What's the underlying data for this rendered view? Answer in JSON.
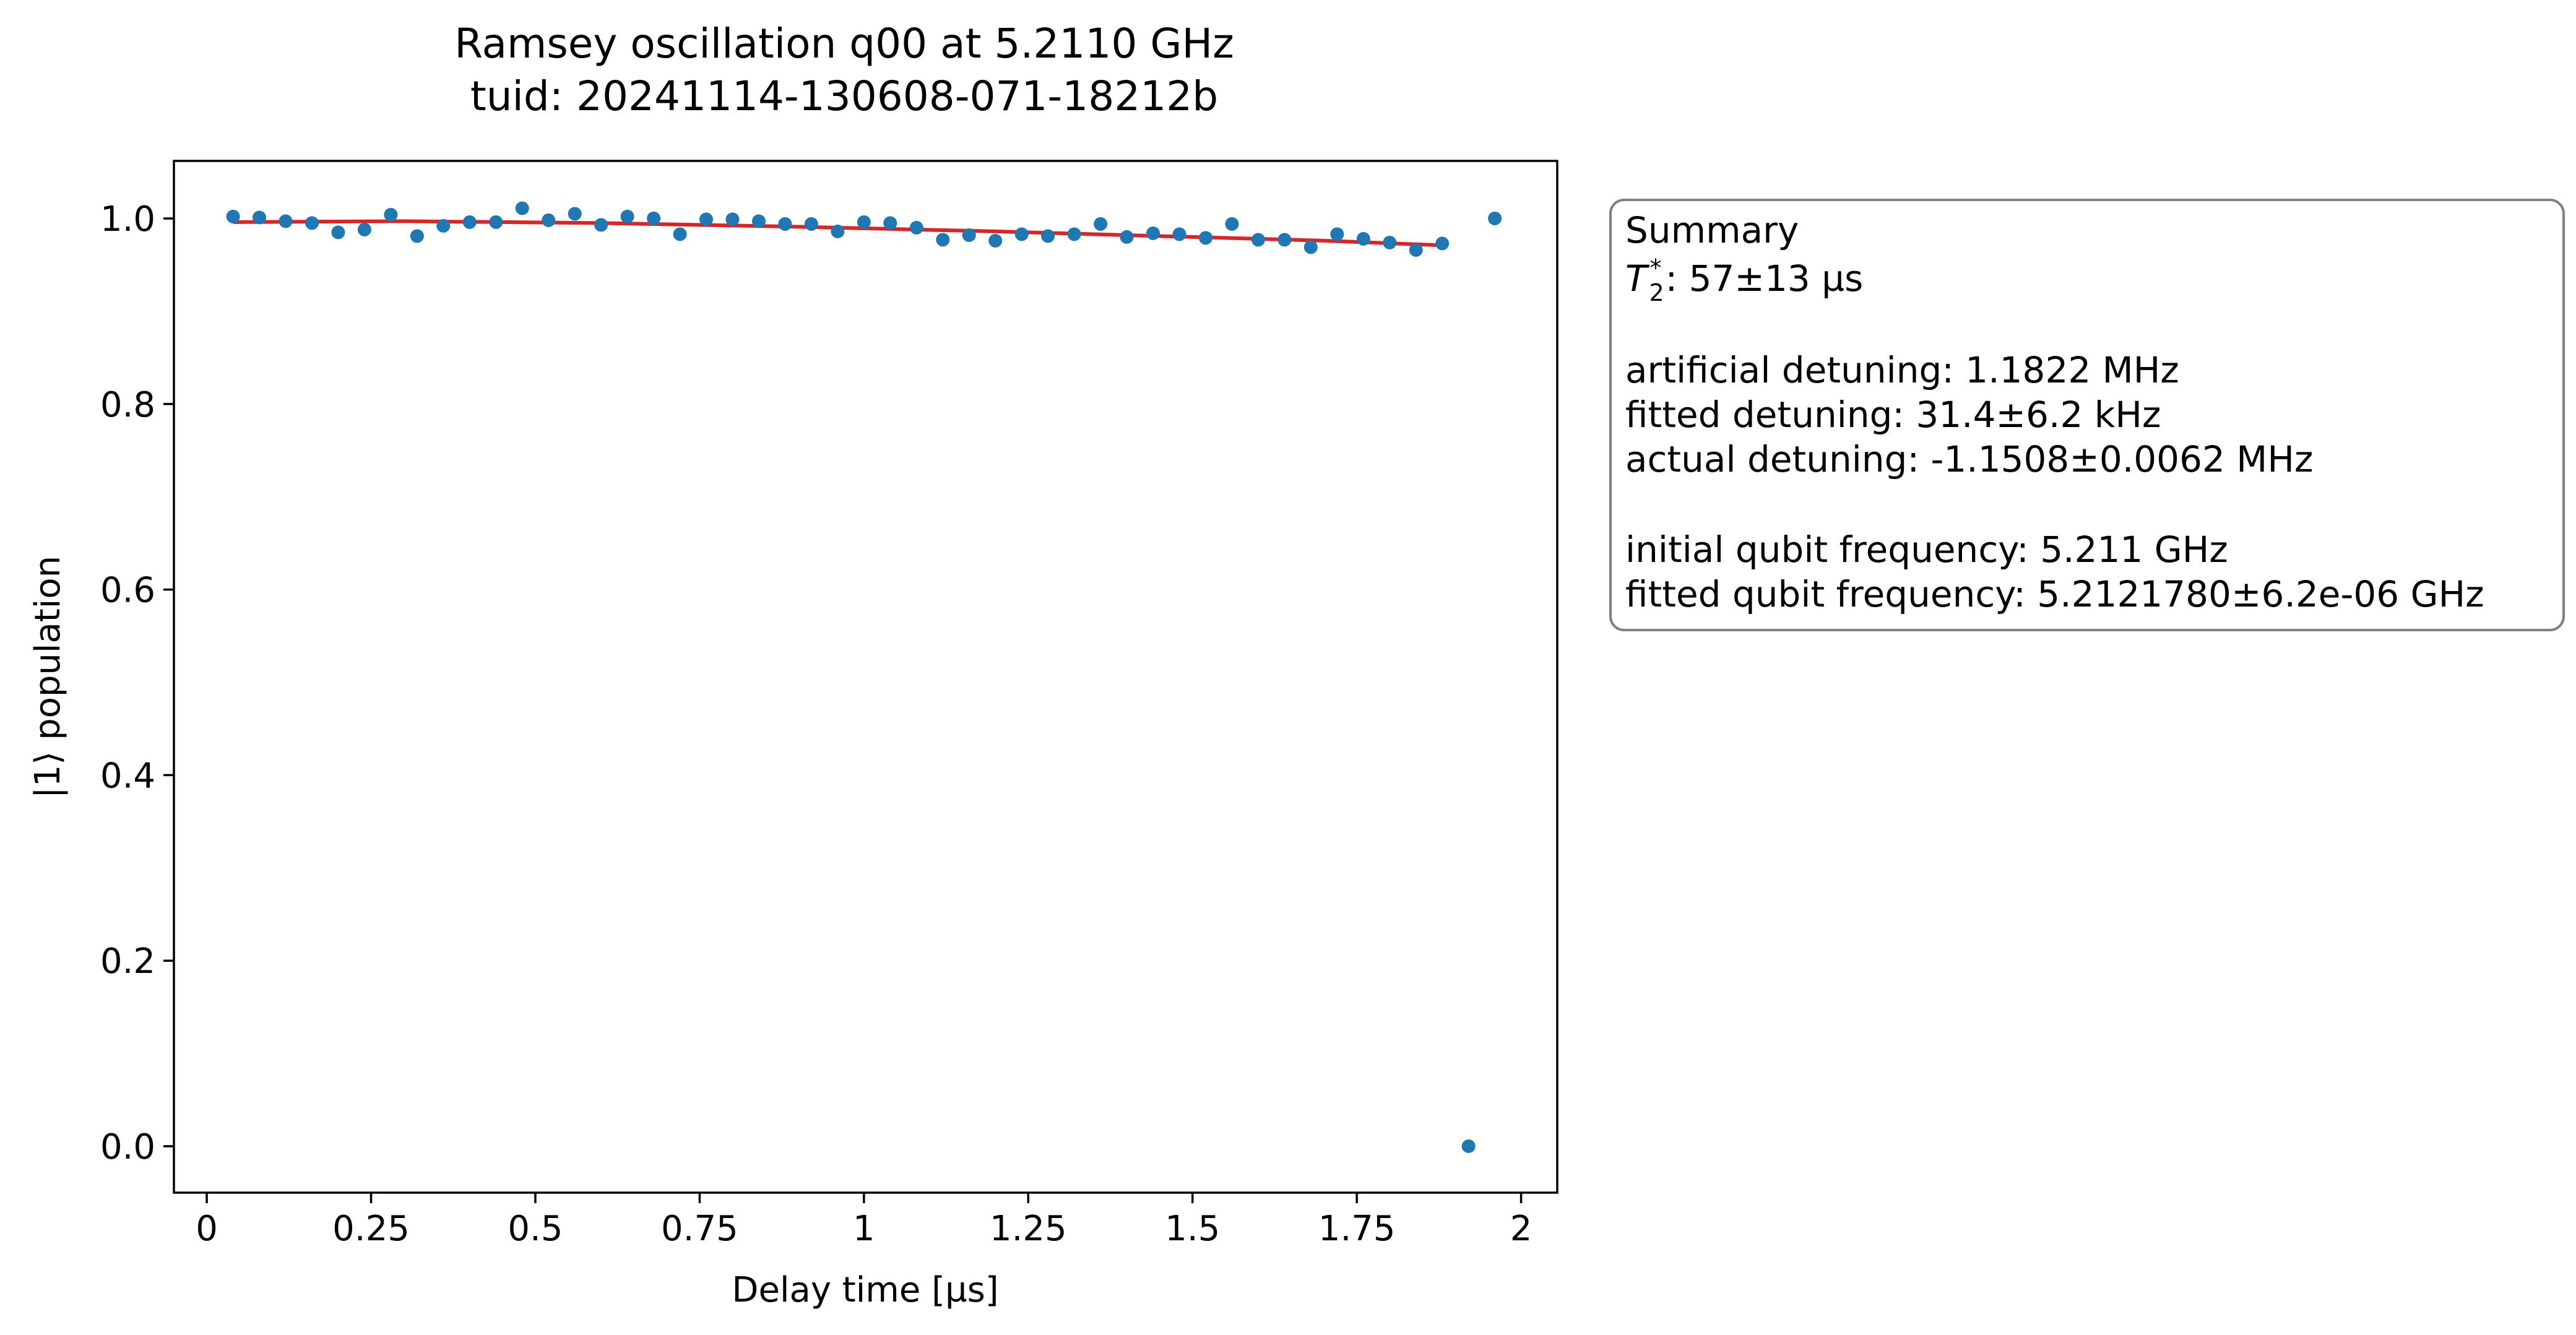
{
  "chart_data": {
    "type": "scatter",
    "title": "Ramsey oscillation q00 at 5.2110 GHz",
    "subtitle": "tuid: 20241114-130608-071-18212b",
    "xlabel": "Delay time [µs]",
    "ylabel": "|1⟩ population",
    "xlim": [
      -0.05,
      2.055
    ],
    "ylim": [
      -0.05,
      1.062
    ],
    "grid": false,
    "xticks": [
      0,
      0.25,
      0.5,
      0.75,
      1,
      1.25,
      1.5,
      1.75,
      2
    ],
    "xtick_labels": [
      "0",
      "0.25",
      "0.5",
      "0.75",
      "1",
      "1.25",
      "1.5",
      "1.75",
      "2"
    ],
    "yticks": [
      0.0,
      0.2,
      0.4,
      0.6,
      0.8,
      1.0
    ],
    "ytick_labels": [
      "0.0",
      "0.2",
      "0.4",
      "0.6",
      "0.8",
      "1.0"
    ],
    "series": [
      {
        "name": "data",
        "kind": "scatter",
        "color": "#1f77b4",
        "x": [
          0.04,
          0.08,
          0.12,
          0.16,
          0.2,
          0.24,
          0.28,
          0.32,
          0.36,
          0.4,
          0.44,
          0.48,
          0.52,
          0.56,
          0.6,
          0.64,
          0.68,
          0.72,
          0.76,
          0.8,
          0.84,
          0.88,
          0.92,
          0.96,
          1.0,
          1.04,
          1.08,
          1.12,
          1.16,
          1.2,
          1.24,
          1.28,
          1.32,
          1.36,
          1.4,
          1.44,
          1.48,
          1.52,
          1.56,
          1.6,
          1.64,
          1.68,
          1.72,
          1.76,
          1.8,
          1.84,
          1.88,
          1.92,
          1.96
        ],
        "y": [
          1.002,
          1.001,
          0.997,
          0.995,
          0.985,
          0.988,
          1.004,
          0.981,
          0.992,
          0.996,
          0.996,
          1.011,
          0.998,
          1.005,
          0.993,
          1.002,
          1.0,
          0.983,
          0.999,
          0.999,
          0.997,
          0.994,
          0.994,
          0.986,
          0.996,
          0.995,
          0.99,
          0.977,
          0.982,
          0.976,
          0.983,
          0.981,
          0.983,
          0.994,
          0.98,
          0.984,
          0.983,
          0.979,
          0.994,
          0.977,
          0.977,
          0.969,
          0.983,
          0.978,
          0.974,
          0.966,
          0.973,
          0.0,
          1.0
        ]
      },
      {
        "name": "fit",
        "kind": "line",
        "color": "#d62728",
        "x": [
          0.04,
          0.3,
          0.6,
          0.9,
          1.2,
          1.5,
          1.7,
          1.88
        ],
        "y": [
          0.996,
          0.997,
          0.995,
          0.991,
          0.986,
          0.98,
          0.976,
          0.971
        ]
      }
    ]
  },
  "summary": {
    "heading": "Summary",
    "t2_symbol": "T",
    "t2_sub": "2",
    "t2_sup": "*",
    "t2_value": ": 57±13 µs",
    "artificial_detuning": "artificial detuning: 1.1822 MHz",
    "fitted_detuning": "fitted detuning: 31.4±6.2 kHz",
    "actual_detuning": "actual detuning: -1.1508±0.0062 MHz",
    "initial_frequency": "initial qubit frequency: 5.211 GHz",
    "fitted_frequency": "fitted qubit frequency: 5.2121780±6.2e-06 GHz"
  },
  "colors": {
    "scatter": "#1f77b4",
    "fit": "#d62728",
    "summary_border": "#808080"
  }
}
